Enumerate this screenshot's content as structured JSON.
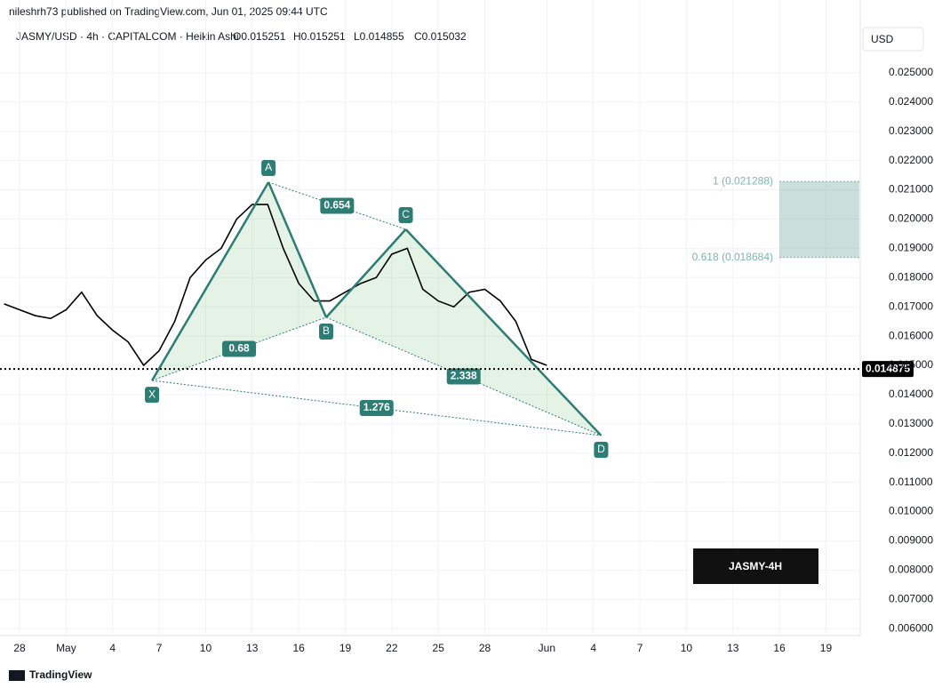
{
  "header": {
    "publisher": "nileshrh73 published on TradingView.com, Jun 01, 2025 09:44 UTC",
    "symbol": "JASMY/USD · 4h · CAPITALCOM · Heikin Ashi",
    "ohlc": [
      "O0.015251",
      "H0.015251",
      "L0.014855",
      "C0.015032"
    ],
    "currency": "USD"
  },
  "chart_data": {
    "type": "line",
    "color": "#000000",
    "grid": true,
    "categories": [
      null,
      "28",
      null,
      null,
      "May",
      null,
      null,
      "4",
      null,
      null,
      "7",
      null,
      null,
      "10",
      null,
      null,
      "13",
      null,
      null,
      "16",
      null,
      null,
      "19",
      null,
      null,
      "22",
      null,
      null,
      "25",
      null,
      null,
      "28",
      null,
      null,
      null,
      "Jun",
      null,
      null,
      "4",
      null,
      null,
      "7",
      null,
      null,
      "10",
      null,
      null,
      "13",
      null,
      null,
      "16",
      null,
      null,
      "19",
      null,
      null
    ],
    "values": [
      0.0171,
      0.0169,
      0.0167,
      0.0166,
      0.0169,
      0.0175,
      0.0167,
      0.0162,
      0.0158,
      0.015,
      0.0155,
      0.0165,
      0.018,
      0.0186,
      0.019,
      0.02,
      0.0205,
      0.0205,
      0.019,
      0.0178,
      0.0172,
      0.0172,
      0.0175,
      0.0178,
      0.018,
      0.0188,
      0.019,
      0.0176,
      0.0172,
      0.017,
      0.0175,
      0.0176,
      0.0172,
      0.0165,
      0.0152,
      0.015,
      null,
      null,
      null,
      null,
      null,
      null,
      null,
      null,
      null,
      null,
      null,
      null,
      null,
      null,
      null,
      null,
      null,
      null,
      null,
      null
    ],
    "ylim": [
      0.00576,
      0.02664
    ],
    "yticks": [
      {
        "value": 0.006,
        "label": "0.006000"
      },
      {
        "value": 0.007,
        "label": "0.007000"
      },
      {
        "value": 0.008,
        "label": "0.008000"
      },
      {
        "value": 0.009,
        "label": "0.009000"
      },
      {
        "value": 0.01,
        "label": "0.010000"
      },
      {
        "value": 0.011,
        "label": "0.011000"
      },
      {
        "value": 0.012,
        "label": "0.012000"
      },
      {
        "value": 0.013,
        "label": "0.013000"
      },
      {
        "value": 0.014,
        "label": "0.014000"
      },
      {
        "value": 0.015,
        "label": "0.015000"
      },
      {
        "value": 0.016,
        "label": "0.016000"
      },
      {
        "value": 0.017,
        "label": "0.017000"
      },
      {
        "value": 0.018,
        "label": "0.018000"
      },
      {
        "value": 0.019,
        "label": "0.019000"
      },
      {
        "value": 0.02,
        "label": "0.020000"
      },
      {
        "value": 0.021,
        "label": "0.021000"
      },
      {
        "value": 0.022,
        "label": "0.022000"
      },
      {
        "value": 0.023,
        "label": "0.023000"
      },
      {
        "value": 0.024,
        "label": "0.024000"
      },
      {
        "value": 0.025,
        "label": "0.025000"
      }
    ],
    "last_price": 0.014875,
    "pattern": {
      "color": "#2e7d74",
      "points": [
        {
          "label": "X",
          "index": 9.54,
          "price": 0.01448
        },
        {
          "label": "A",
          "index": 17.05,
          "price": 0.02126
        },
        {
          "label": "B",
          "index": 20.77,
          "price": 0.01664
        },
        {
          "label": "C",
          "index": 25.9,
          "price": 0.01965
        },
        {
          "label": "D",
          "index": 38.5,
          "price": 0.0126
        }
      ],
      "ratios": [
        {
          "from": 1,
          "to": 3,
          "text": "0.654"
        },
        {
          "from": 0,
          "to": 2,
          "text": "0.68"
        },
        {
          "from": 2,
          "to": 4,
          "text": "2.338"
        },
        {
          "from": 0,
          "to": 4,
          "text": "1.276"
        }
      ]
    },
    "targets": [
      {
        "price": 0.021288,
        "label": "1 (0.021288)"
      },
      {
        "price": 0.018684,
        "label": "0.618 (0.018684)"
      }
    ],
    "badge": "JASMY-4H"
  },
  "footer": "TradingView"
}
